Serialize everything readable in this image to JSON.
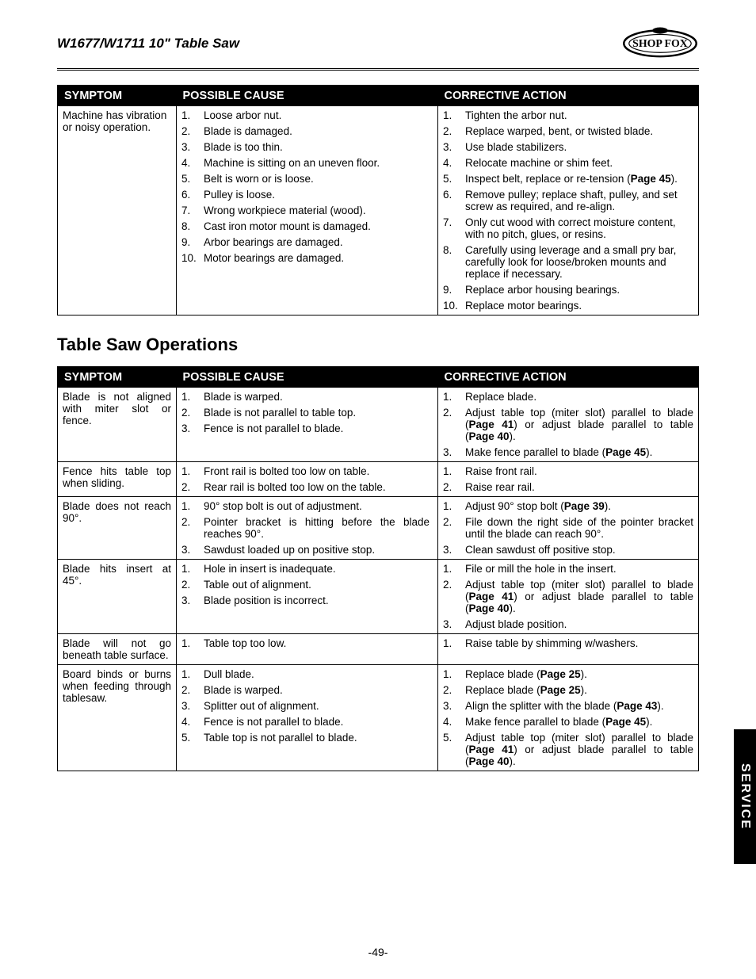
{
  "header": {
    "title": "W1677/W1711 10\" Table Saw",
    "brand": "SHOP FOX"
  },
  "table1": {
    "columns": [
      "SYMPTOM",
      "POSSIBLE CAUSE",
      "CORRECTIVE ACTION"
    ],
    "rows": [
      {
        "symptom": "Machine has vibration or noisy operation.",
        "causes": [
          "Loose arbor nut.",
          "Blade is damaged.",
          "Blade is too thin.",
          "Machine is sitting on an uneven floor.",
          "Belt is worn or is loose.",
          "Pulley is loose.",
          "Wrong workpiece material (wood).",
          "Cast iron motor mount is damaged.",
          "Arbor bearings are damaged.",
          "Motor bearings are damaged."
        ],
        "actions": [
          "Tighten the arbor nut.",
          "Replace warped, bent, or twisted blade.",
          "Use blade stabilizers.",
          "Relocate machine or shim feet.",
          "Inspect belt, replace or re-tension (Page 45).",
          "Remove pulley; replace shaft, pulley, and set screw as required, and re-align.",
          "Only cut wood with correct moisture content, with no pitch, glues, or resins.",
          "Carefully using leverage and a small pry bar, carefully look for loose/broken mounts and replace if necessary.",
          "Replace arbor housing bearings.",
          "Replace motor bearings."
        ]
      }
    ]
  },
  "section_heading": "Table Saw Operations",
  "table2": {
    "columns": [
      "SYMPTOM",
      "POSSIBLE CAUSE",
      "CORRECTIVE ACTION"
    ],
    "rows": [
      {
        "symptom": "Blade is not aligned with miter slot or fence.",
        "causes": [
          "Blade is warped.",
          "Blade is not parallel to table top.",
          "Fence is not parallel to blade."
        ],
        "actions": [
          "Replace blade.",
          "Adjust table top (miter slot) parallel to blade (Page 41) or adjust blade parallel to table (Page 40).",
          "Make fence parallel to blade (Page 45)."
        ]
      },
      {
        "symptom": "Fence hits table top when sliding.",
        "causes": [
          "Front rail is bolted too low on table.",
          "Rear rail is bolted too low on the table."
        ],
        "actions": [
          "Raise front rail.",
          "Raise rear rail."
        ]
      },
      {
        "symptom": "Blade does not reach 90°.",
        "causes": [
          "90° stop bolt is out of adjustment.",
          "Pointer bracket is hitting before the blade reaches 90°.",
          "Sawdust loaded up on positive stop."
        ],
        "actions": [
          "Adjust 90° stop bolt (Page 39).",
          "File down the right side of the pointer bracket until the blade can reach 90°.",
          "Clean sawdust off positive stop."
        ]
      },
      {
        "symptom": "Blade hits insert at 45°.",
        "causes": [
          "Hole in insert is inadequate.",
          "Table out of alignment.",
          "Blade position is incorrect."
        ],
        "actions": [
          "File or mill the hole in the insert.",
          "Adjust table top (miter slot) parallel to blade (Page 41) or adjust blade parallel to table (Page 40).",
          "Adjust blade position."
        ]
      },
      {
        "symptom": "Blade will not go beneath table surface.",
        "causes": [
          "Table top too low."
        ],
        "actions": [
          "Raise table by shimming w/washers."
        ]
      },
      {
        "symptom": "Board binds or burns when feeding through tablesaw.",
        "causes": [
          "Dull blade.",
          "Blade is warped.",
          "Splitter out of alignment.",
          "Fence is not parallel to blade.",
          "Table top is not parallel to blade."
        ],
        "actions": [
          "Replace blade (Page 25).",
          "Replace blade (Page 25).",
          "Align the splitter with the blade (Page 43).",
          "Make fence parallel to blade (Page 45).",
          "Adjust table top (miter slot) parallel to blade (Page 41) or adjust blade parallel to table (Page 40)."
        ]
      }
    ]
  },
  "side_tab": "SERVICE",
  "page_number": "-49-"
}
